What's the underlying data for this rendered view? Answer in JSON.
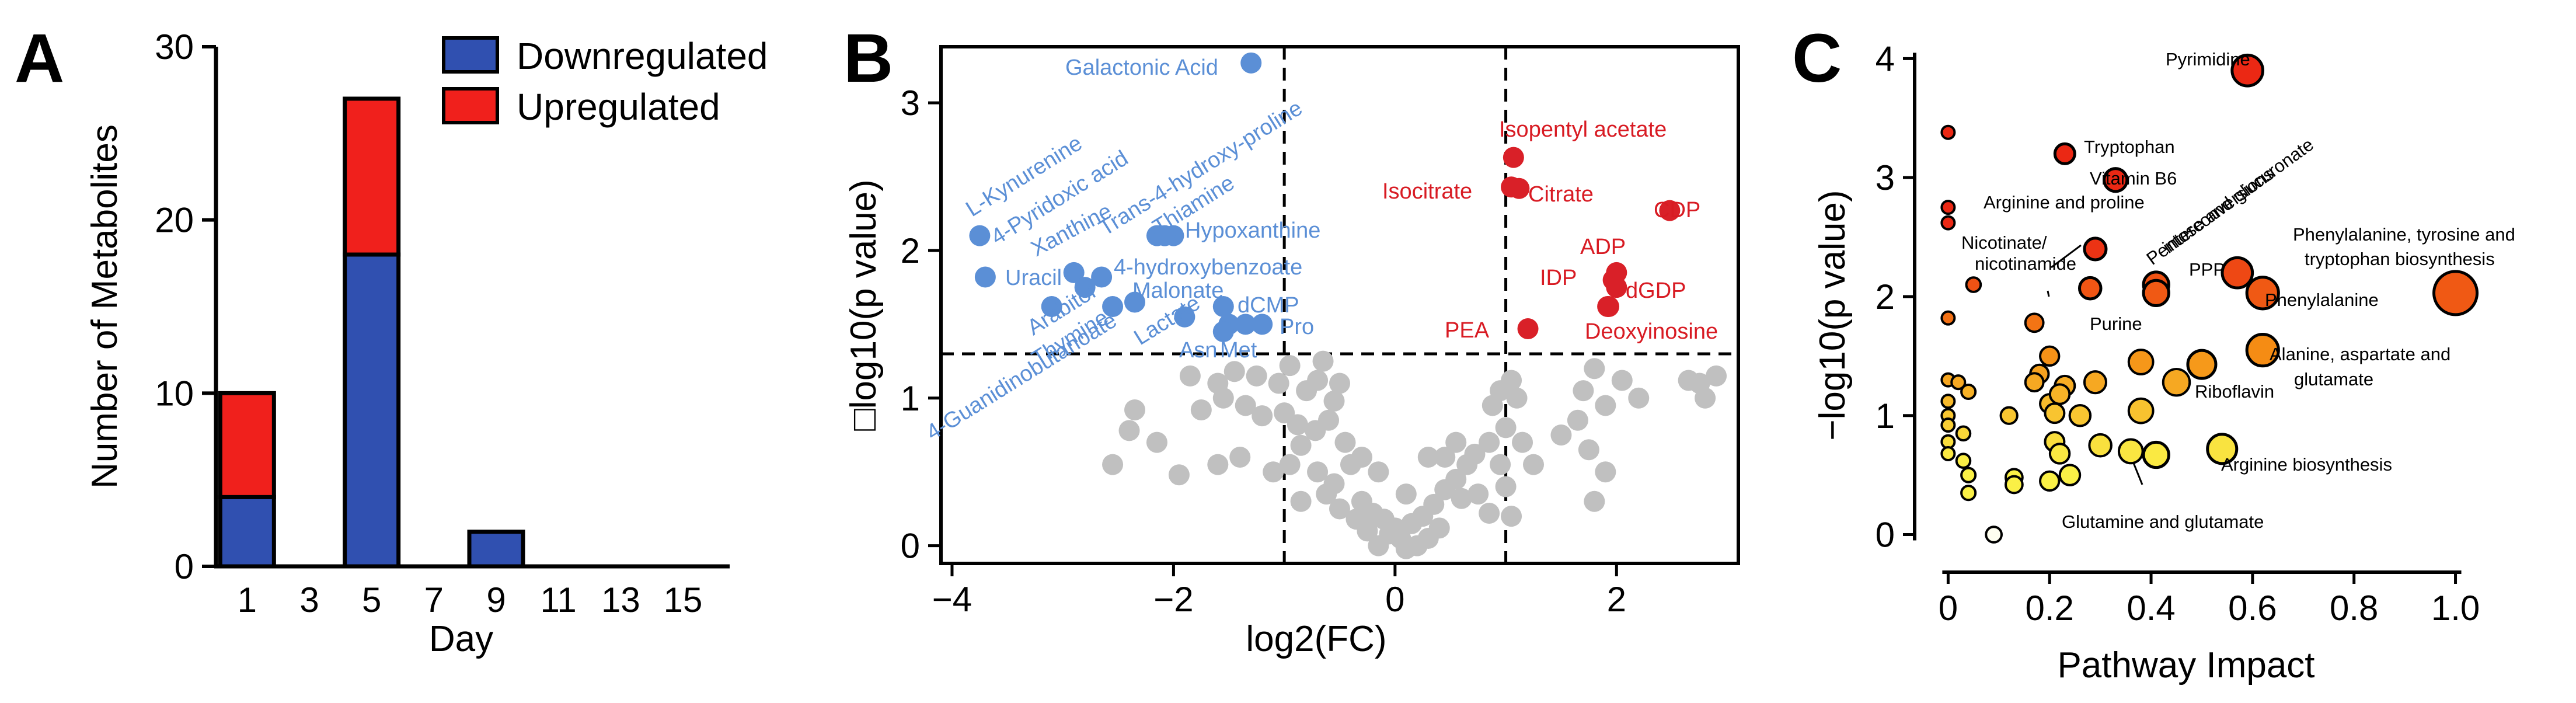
{
  "figure": {
    "panel_a_letter": "A",
    "panel_b_letter": "B",
    "panel_c_letter": "C"
  },
  "colors": {
    "down": "#3050b0",
    "up": "#f0201c",
    "down_text": "#5b8fd6",
    "up_text": "#d81b23",
    "ns": "#c0c0c0",
    "up_point": "#d92028",
    "down_point": "#5b8fd6"
  },
  "chart_data": [
    {
      "type": "bar",
      "panel": "A",
      "title": "",
      "xlabel": "Day",
      "ylabel": "Number of Metabolites",
      "ylim": [
        0,
        30
      ],
      "yticks": [
        "0",
        "10",
        "20",
        "30"
      ],
      "xticks": [
        "1",
        "3",
        "5",
        "7",
        "9",
        "11",
        "13",
        "15"
      ],
      "legend": [
        "Downregulated",
        "Upregulated"
      ],
      "legend_position": "top-right",
      "categories": [
        "1",
        "5",
        "9"
      ],
      "series": [
        {
          "name": "Downregulated",
          "values": [
            4,
            18,
            2
          ]
        },
        {
          "name": "Upregulated",
          "values": [
            6,
            9,
            0
          ]
        }
      ]
    },
    {
      "type": "scatter",
      "panel": "B",
      "title": "",
      "xlabel": "log2(FC)",
      "ylabel": "□log10(p value)",
      "xlim": [
        -4.1,
        3.1
      ],
      "ylim": [
        -0.12,
        3.38
      ],
      "xticks": [
        "−4",
        "−2",
        "0",
        "2"
      ],
      "yticks": [
        "0",
        "1",
        "2",
        "3"
      ],
      "thresholds": {
        "fc_low": -1.0,
        "fc_high": 1.0,
        "p": 1.3
      },
      "up_points": [
        {
          "label": "Isopentyl acetate",
          "x": 1.07,
          "y": 2.63
        },
        {
          "label": "Isocitrate",
          "x": 1.05,
          "y": 2.43
        },
        {
          "label": "Citrate",
          "x": 1.12,
          "y": 2.42
        },
        {
          "label": "CDP",
          "x": 2.48,
          "y": 2.27
        },
        {
          "label": "ADP",
          "x": 2.0,
          "y": 1.85
        },
        {
          "label": "IDP",
          "x": 1.97,
          "y": 1.8
        },
        {
          "label": "dGDP",
          "x": 2.0,
          "y": 1.75
        },
        {
          "label": "",
          "x": 1.93,
          "y": 1.62
        },
        {
          "label": "PEA",
          "x": 1.2,
          "y": 1.47
        },
        {
          "label": "Deoxyinosine",
          "x": 1.92,
          "y": 1.62
        }
      ],
      "down_points": [
        {
          "label": "Galactonic Acid",
          "x": -1.3,
          "y": 3.27
        },
        {
          "label": "L-Kynurenine",
          "x": -3.75,
          "y": 2.1
        },
        {
          "label": "4-Pyridoxic acid",
          "x": -3.7,
          "y": 1.82
        },
        {
          "label": "Xanthine",
          "x": -2.9,
          "y": 1.85
        },
        {
          "label": "Trans-4-hydroxy-proline",
          "x": -2.15,
          "y": 2.1
        },
        {
          "label": "Thiamine",
          "x": -2.0,
          "y": 2.1
        },
        {
          "label": "Hypoxanthine",
          "x": -2.08,
          "y": 2.1
        },
        {
          "label": "Uracil",
          "x": -2.65,
          "y": 1.82
        },
        {
          "label": "4-hydroxybenzoate",
          "x": -2.8,
          "y": 1.75
        },
        {
          "label": "Malonate",
          "x": -2.35,
          "y": 1.65
        },
        {
          "label": "dCMP",
          "x": -1.55,
          "y": 1.62
        },
        {
          "label": "Arabitol",
          "x": -3.1,
          "y": 1.62
        },
        {
          "label": "Thymine",
          "x": -2.55,
          "y": 1.62
        },
        {
          "label": "Lactate",
          "x": -1.9,
          "y": 1.55
        },
        {
          "label": "Pro",
          "x": -1.2,
          "y": 1.5
        },
        {
          "label": "Asn",
          "x": -1.5,
          "y": 1.5
        },
        {
          "label": "Met",
          "x": -1.35,
          "y": 1.5
        },
        {
          "label": "4-Guanidinobutanoate",
          "x": -1.55,
          "y": 1.45
        }
      ],
      "annotations": [
        "Galactonic Acid",
        "L-Kynurenine",
        "4-Pyridoxic acid",
        "Xanthine",
        "Uracil",
        "Trans-4-hydroxy-proline",
        "Thiamine",
        "Hypoxanthine",
        "4-hydroxybenzoate",
        "Malonate",
        "dCMP",
        "Pro",
        "Arabitol",
        "Thymine",
        "4-Guanidinobutanoate",
        "Lactate",
        "Asn",
        "Met",
        "Isopentyl acetate",
        "Isocitrate",
        "Citrate",
        "CDP",
        "ADP",
        "IDP",
        "dGDP",
        "PEA",
        "Deoxyinosine"
      ],
      "ns_points": [
        [
          -1.85,
          1.15
        ],
        [
          -1.6,
          1.1
        ],
        [
          -1.45,
          1.18
        ],
        [
          -1.25,
          1.15
        ],
        [
          -1.55,
          1.0
        ],
        [
          -1.05,
          1.1
        ],
        [
          -0.95,
          1.22
        ],
        [
          -0.8,
          1.05
        ],
        [
          -0.7,
          1.12
        ],
        [
          -0.65,
          1.25
        ],
        [
          -0.5,
          1.1
        ],
        [
          -0.55,
          0.98
        ],
        [
          -1.75,
          0.92
        ],
        [
          -1.35,
          0.95
        ],
        [
          -1.2,
          0.88
        ],
        [
          -1.0,
          0.9
        ],
        [
          -0.88,
          0.82
        ],
        [
          -0.85,
          0.68
        ],
        [
          -0.72,
          0.78
        ],
        [
          -0.6,
          0.85
        ],
        [
          -0.45,
          0.7
        ],
        [
          -2.35,
          0.92
        ],
        [
          -2.55,
          0.55
        ],
        [
          -2.4,
          0.78
        ],
        [
          -1.6,
          0.55
        ],
        [
          -1.4,
          0.6
        ],
        [
          -1.1,
          0.5
        ],
        [
          -0.95,
          0.55
        ],
        [
          -0.7,
          0.5
        ],
        [
          -0.55,
          0.42
        ],
        [
          -0.4,
          0.55
        ],
        [
          -0.62,
          0.35
        ],
        [
          -0.3,
          0.3
        ],
        [
          -0.2,
          0.22
        ],
        [
          -0.1,
          0.18
        ],
        [
          0.0,
          0.12
        ],
        [
          0.05,
          0.05
        ],
        [
          -0.05,
          0.08
        ],
        [
          0.15,
          0.15
        ],
        [
          0.25,
          0.2
        ],
        [
          0.35,
          0.28
        ],
        [
          0.45,
          0.38
        ],
        [
          0.55,
          0.45
        ],
        [
          0.65,
          0.55
        ],
        [
          0.72,
          0.62
        ],
        [
          0.85,
          0.7
        ],
        [
          0.95,
          0.55
        ],
        [
          0.6,
          0.32
        ],
        [
          0.4,
          0.12
        ],
        [
          0.3,
          0.05
        ],
        [
          0.2,
          0.0
        ],
        [
          0.1,
          -0.02
        ],
        [
          -0.15,
          0.0
        ],
        [
          -0.25,
          0.1
        ],
        [
          -0.35,
          0.18
        ],
        [
          -0.5,
          0.25
        ],
        [
          0.45,
          0.6
        ],
        [
          0.55,
          0.7
        ],
        [
          0.75,
          0.35
        ],
        [
          1.0,
          0.4
        ],
        [
          1.05,
          0.2
        ],
        [
          1.0,
          0.8
        ],
        [
          1.1,
          1.0
        ],
        [
          1.05,
          1.12
        ],
        [
          0.95,
          1.05
        ],
        [
          0.88,
          0.95
        ],
        [
          1.15,
          0.7
        ],
        [
          1.25,
          0.55
        ],
        [
          1.5,
          0.75
        ],
        [
          1.75,
          0.65
        ],
        [
          1.9,
          0.5
        ],
        [
          1.8,
          0.3
        ],
        [
          1.65,
          0.85
        ],
        [
          1.7,
          1.05
        ],
        [
          1.8,
          1.2
        ],
        [
          2.05,
          1.12
        ],
        [
          2.2,
          1.0
        ],
        [
          1.9,
          0.95
        ],
        [
          2.65,
          1.12
        ],
        [
          2.75,
          1.1
        ],
        [
          2.9,
          1.15
        ],
        [
          2.8,
          1.0
        ],
        [
          -0.3,
          0.6
        ],
        [
          -0.15,
          0.5
        ],
        [
          0.1,
          0.35
        ],
        [
          0.3,
          0.6
        ],
        [
          -2.15,
          0.7
        ],
        [
          -1.95,
          0.48
        ],
        [
          -0.85,
          0.3
        ],
        [
          0.85,
          0.22
        ]
      ]
    },
    {
      "type": "scatter",
      "panel": "C",
      "title": "",
      "xlabel": "Pathway Impact",
      "ylabel": "−log10(p value)",
      "xlim": [
        -0.02,
        1.05
      ],
      "ylim": [
        -0.12,
        4.1
      ],
      "xticks": [
        "0",
        "0.2",
        "0.4",
        "0.6",
        "0.8",
        "1.0"
      ],
      "yticks": [
        "0",
        "1",
        "2",
        "3",
        "4"
      ],
      "labeled_points": [
        {
          "label": "Pyrimidine",
          "x": 0.59,
          "y": 3.9
        },
        {
          "label": "Tryptophan",
          "x": 0.23,
          "y": 3.2
        },
        {
          "label": "Vitamin B6",
          "x": 0.33,
          "y": 2.98
        },
        {
          "label": "Arginine and proline",
          "x": 0.29,
          "y": 2.4
        },
        {
          "label": "Pentose and glucuronate interconversions",
          "x": 0.41,
          "y": 2.1
        },
        {
          "label": "Nicotinate/ nicotinamide",
          "x": 0.28,
          "y": 2.07
        },
        {
          "label": "PPP",
          "x": 0.57,
          "y": 2.2
        },
        {
          "label": "Phenylalanine",
          "x": 0.62,
          "y": 2.03
        },
        {
          "label": "Phenylalanine, tyrosine and tryptophan biosynthesis",
          "x": 1.0,
          "y": 2.03
        },
        {
          "label": "Purine",
          "x": 0.41,
          "y": 2.03
        },
        {
          "label": "Alanine, aspartate and glutamate",
          "x": 0.62,
          "y": 1.55
        },
        {
          "label": "Riboflavin",
          "x": 0.5,
          "y": 1.43
        },
        {
          "label": "Arginine biosynthesis",
          "x": 0.54,
          "y": 0.72
        },
        {
          "label": "Glutamine and glutamate",
          "x": 0.41,
          "y": 0.67
        }
      ],
      "annotations": [
        "Pyrimidine",
        "Tryptophan",
        "Vitamin B6",
        "Arginine and proline",
        "Nicotinate/",
        "nicotinamide",
        "Pentose and glucuronate",
        "interconversions",
        "PPP",
        "Phenylalanine, tyrosine and",
        "tryptophan biosynthesis",
        "Phenylalanine",
        "Purine",
        "Alanine, aspartate and",
        "glutamate",
        "Riboflavin",
        "Arginine biosynthesis",
        "Glutamine and glutamate"
      ],
      "other_points": [
        [
          0.0,
          3.38
        ],
        [
          0.0,
          2.75
        ],
        [
          0.0,
          2.62
        ],
        [
          0.05,
          2.1
        ],
        [
          0.0,
          1.82
        ],
        [
          0.17,
          1.78
        ],
        [
          0.0,
          1.3
        ],
        [
          0.0,
          1.12
        ],
        [
          0.0,
          1.0
        ],
        [
          0.0,
          0.92
        ],
        [
          0.0,
          0.78
        ],
        [
          0.0,
          0.68
        ],
        [
          0.03,
          0.85
        ],
        [
          0.03,
          0.62
        ],
        [
          0.04,
          0.5
        ],
        [
          0.04,
          0.35
        ],
        [
          0.04,
          1.2
        ],
        [
          0.02,
          1.28
        ],
        [
          0.12,
          1.0
        ],
        [
          0.13,
          0.48
        ],
        [
          0.13,
          0.42
        ],
        [
          0.09,
          0.0
        ],
        [
          0.18,
          1.35
        ],
        [
          0.17,
          1.28
        ],
        [
          0.2,
          1.1
        ],
        [
          0.21,
          1.02
        ],
        [
          0.23,
          1.25
        ],
        [
          0.22,
          1.18
        ],
        [
          0.21,
          0.78
        ],
        [
          0.22,
          0.68
        ],
        [
          0.2,
          0.45
        ],
        [
          0.2,
          1.5
        ],
        [
          0.29,
          1.28
        ],
        [
          0.3,
          0.75
        ],
        [
          0.26,
          1.0
        ],
        [
          0.38,
          1.45
        ],
        [
          0.38,
          1.04
        ],
        [
          0.45,
          1.28
        ],
        [
          0.36,
          0.7
        ],
        [
          0.24,
          0.5
        ]
      ]
    }
  ]
}
